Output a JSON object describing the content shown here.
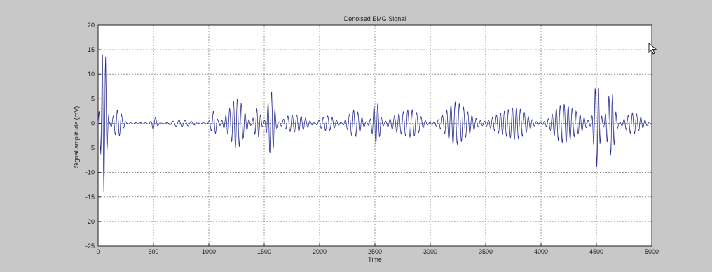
{
  "colors": {
    "figure_background": "#c8c8c8",
    "axes_background": "#ffffff",
    "signal": "#2b2f8f",
    "grid": "#555555",
    "text": "#222222"
  },
  "cursor_icon": "mouse-pointer-icon",
  "chart_data": {
    "type": "line",
    "title": "Denoised EMG Signal",
    "xlabel": "Time",
    "ylabel": "Signal amplitude (mV)",
    "xlim": [
      0,
      5000
    ],
    "ylim": [
      -25,
      20
    ],
    "grid": true,
    "grid_style": "dotted",
    "x_ticks": [
      0,
      500,
      1000,
      1500,
      2000,
      2500,
      3000,
      3500,
      4000,
      4500,
      5000
    ],
    "y_ticks": [
      20,
      15,
      10,
      5,
      0,
      -5,
      -10,
      -15,
      -20,
      -25
    ],
    "series": [
      {
        "color": "#2b2f8f",
        "bursts": [
          {
            "start": 0,
            "end": 100,
            "peak": 17,
            "period": 30
          },
          {
            "start": 100,
            "end": 260,
            "peak": 3.5,
            "period": 38
          },
          {
            "start": 460,
            "end": 560,
            "peak": 2,
            "period": 45
          },
          {
            "start": 560,
            "end": 990,
            "peak": 1,
            "period": 55
          },
          {
            "start": 990,
            "end": 1100,
            "peak": 3,
            "period": 40
          },
          {
            "start": 1100,
            "end": 1380,
            "peak": 6,
            "period": 35
          },
          {
            "start": 1380,
            "end": 1500,
            "peak": 4,
            "period": 35
          },
          {
            "start": 1500,
            "end": 1620,
            "peak": 9,
            "period": 32
          },
          {
            "start": 1620,
            "end": 1950,
            "peak": 3.5,
            "period": 40
          },
          {
            "start": 1950,
            "end": 2200,
            "peak": 2.5,
            "period": 40
          },
          {
            "start": 2200,
            "end": 2440,
            "peak": 3,
            "period": 38
          },
          {
            "start": 2440,
            "end": 2580,
            "peak": 5,
            "period": 34
          },
          {
            "start": 2580,
            "end": 3000,
            "peak": 4.5,
            "period": 40
          },
          {
            "start": 3000,
            "end": 3480,
            "peak": 5,
            "period": 38
          },
          {
            "start": 3480,
            "end": 4000,
            "peak": 4.5,
            "period": 36
          },
          {
            "start": 4000,
            "end": 4450,
            "peak": 5.5,
            "period": 36
          },
          {
            "start": 4450,
            "end": 4560,
            "peak": 9.5,
            "period": 30
          },
          {
            "start": 4560,
            "end": 4700,
            "peak": 9,
            "period": 32
          },
          {
            "start": 4700,
            "end": 5000,
            "peak": 3,
            "period": 38
          }
        ]
      }
    ]
  }
}
